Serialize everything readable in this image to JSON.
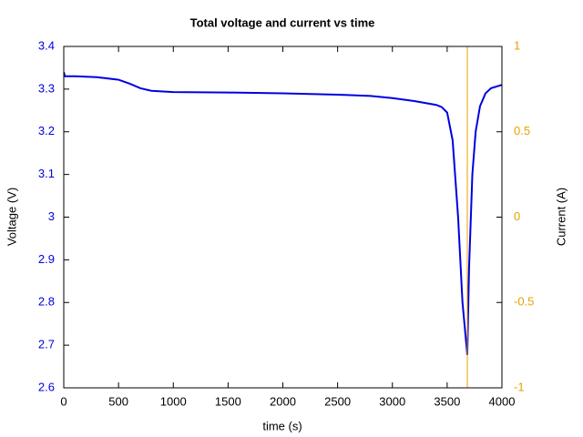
{
  "chart_data": {
    "type": "line",
    "title": "Total voltage and current vs time",
    "x_label": "time (s)",
    "y_label": "Voltage (V)",
    "y2_label": "Current (A)",
    "xlim": [
      0,
      4000
    ],
    "xticks": [
      0,
      500,
      1000,
      1500,
      2000,
      2500,
      3000,
      3500,
      4000
    ],
    "ylim": [
      2.6,
      3.4
    ],
    "yticks": [
      2.6,
      2.7,
      2.8,
      2.9,
      3,
      3.1,
      3.2,
      3.3,
      3.4
    ],
    "y2lim": [
      -1,
      1
    ],
    "y2ticks": [
      -1,
      -0.5,
      0,
      0.5,
      1
    ],
    "y_color": "#0000e0",
    "y2_color": "#e8a000",
    "series": [
      {
        "name": "Voltage",
        "color": "#0000e0",
        "x": [
          0,
          10,
          100,
          300,
          500,
          600,
          700,
          800,
          1000,
          1500,
          2000,
          2500,
          2800,
          3000,
          3200,
          3400,
          3450,
          3500,
          3550,
          3600,
          3640,
          3684,
          3700,
          3730,
          3760,
          3800,
          3850,
          3900,
          4000
        ],
        "values": [
          3.34,
          3.33,
          3.33,
          3.328,
          3.322,
          3.313,
          3.302,
          3.296,
          3.293,
          3.292,
          3.29,
          3.287,
          3.284,
          3.279,
          3.272,
          3.263,
          3.258,
          3.245,
          3.18,
          3.0,
          2.8,
          2.677,
          2.88,
          3.1,
          3.2,
          3.26,
          3.29,
          3.302,
          3.31
        ]
      },
      {
        "name": "Current",
        "color": "#e8a000",
        "axis": "y2",
        "x": [
          3684,
          3684
        ],
        "values": [
          -1,
          1
        ]
      }
    ]
  }
}
